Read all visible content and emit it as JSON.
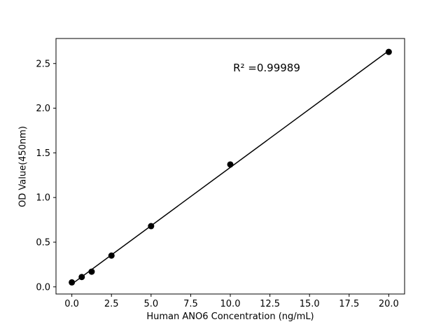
{
  "chart_data": {
    "type": "scatter",
    "title": "",
    "xlabel": "Human ANO6 Concentration (ng/mL)",
    "ylabel": "OD Value(450nm)",
    "annotation": "R² =0.99989",
    "annotation_pos": [
      12.3,
      2.45
    ],
    "x": [
      0,
      0.625,
      1.25,
      2.5,
      5,
      10,
      20
    ],
    "y": [
      0.05,
      0.11,
      0.17,
      0.35,
      0.68,
      1.37,
      2.63
    ],
    "fit_line": true,
    "xticks": [
      0.0,
      2.5,
      5.0,
      7.5,
      10.0,
      12.5,
      15.0,
      17.5,
      20.0
    ],
    "yticks": [
      0.0,
      0.5,
      1.0,
      1.5,
      2.0,
      2.5
    ],
    "xlim": [
      -1,
      21
    ],
    "ylim": [
      -0.08,
      2.78
    ],
    "grid": false,
    "legend": null,
    "marker_color": "#000000",
    "line_color": "#000000",
    "background_color": "#ffffff"
  }
}
